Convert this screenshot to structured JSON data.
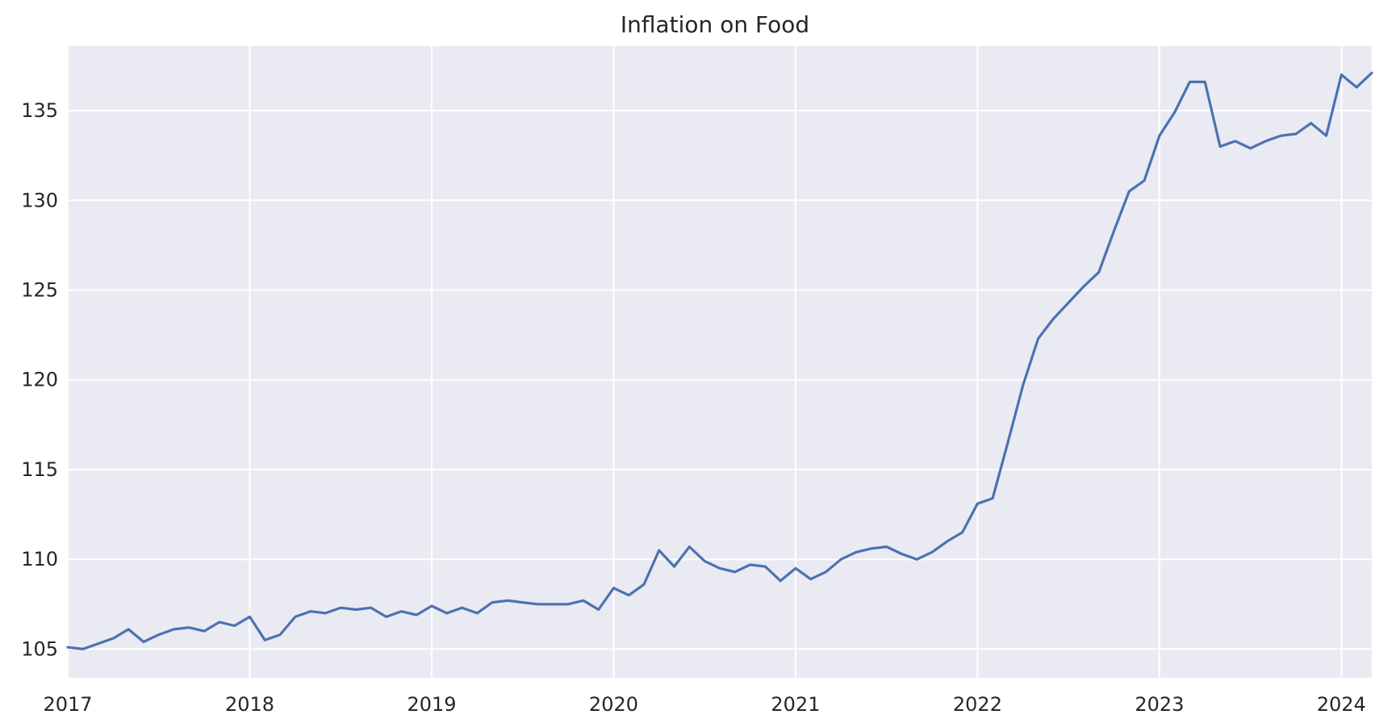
{
  "chart_data": {
    "type": "line",
    "title": "Inflation on Food",
    "xlabel": "",
    "ylabel": "",
    "x_ticks": [
      "2017",
      "2018",
      "2019",
      "2020",
      "2021",
      "2022",
      "2023",
      "2024"
    ],
    "y_ticks": [
      "105",
      "110",
      "115",
      "120",
      "125",
      "130",
      "135"
    ],
    "xlim": [
      "2017-01",
      "2024-03"
    ],
    "ylim": [
      103.4,
      138.6
    ],
    "grid": true,
    "legend": "none",
    "series": [
      {
        "color": "#4c72b0",
        "x": [
          "2017-01",
          "2017-02",
          "2017-03",
          "2017-04",
          "2017-05",
          "2017-06",
          "2017-07",
          "2017-08",
          "2017-09",
          "2017-10",
          "2017-11",
          "2017-12",
          "2018-01",
          "2018-02",
          "2018-03",
          "2018-04",
          "2018-05",
          "2018-06",
          "2018-07",
          "2018-08",
          "2018-09",
          "2018-10",
          "2018-11",
          "2018-12",
          "2019-01",
          "2019-02",
          "2019-03",
          "2019-04",
          "2019-05",
          "2019-06",
          "2019-07",
          "2019-08",
          "2019-09",
          "2019-10",
          "2019-11",
          "2019-12",
          "2020-01",
          "2020-02",
          "2020-03",
          "2020-04",
          "2020-05",
          "2020-06",
          "2020-07",
          "2020-08",
          "2020-09",
          "2020-10",
          "2020-11",
          "2020-12",
          "2021-01",
          "2021-02",
          "2021-03",
          "2021-04",
          "2021-05",
          "2021-06",
          "2021-07",
          "2021-08",
          "2021-09",
          "2021-10",
          "2021-11",
          "2021-12",
          "2022-01",
          "2022-02",
          "2022-03",
          "2022-04",
          "2022-05",
          "2022-06",
          "2022-07",
          "2022-08",
          "2022-09",
          "2022-10",
          "2022-11",
          "2022-12",
          "2023-01",
          "2023-02",
          "2023-03",
          "2023-04",
          "2023-05",
          "2023-06",
          "2023-07",
          "2023-08",
          "2023-09",
          "2023-10",
          "2023-11",
          "2023-12",
          "2024-01",
          "2024-02",
          "2024-03"
        ],
        "values": [
          105.1,
          105.0,
          105.3,
          105.6,
          106.1,
          105.4,
          105.8,
          106.1,
          106.2,
          106.0,
          106.5,
          106.3,
          106.8,
          105.5,
          105.8,
          106.8,
          107.1,
          107.0,
          107.3,
          107.2,
          107.3,
          106.8,
          107.1,
          106.9,
          107.4,
          107.0,
          107.3,
          107.0,
          107.6,
          107.7,
          107.6,
          107.5,
          107.5,
          107.5,
          107.7,
          107.2,
          108.4,
          108.0,
          108.6,
          110.5,
          109.6,
          110.7,
          109.9,
          109.5,
          109.3,
          109.7,
          109.6,
          108.8,
          109.5,
          108.9,
          109.3,
          110.0,
          110.4,
          110.6,
          110.7,
          110.3,
          110.0,
          110.4,
          111.0,
          111.5,
          113.1,
          113.4,
          116.5,
          119.7,
          122.3,
          123.4,
          124.3,
          125.2,
          126.0,
          128.3,
          130.5,
          131.1,
          133.6,
          134.9,
          136.6,
          136.6,
          133.0,
          133.3,
          132.9,
          133.3,
          133.6,
          133.7,
          134.3,
          133.6,
          137.0,
          136.3,
          137.1
        ]
      }
    ]
  }
}
